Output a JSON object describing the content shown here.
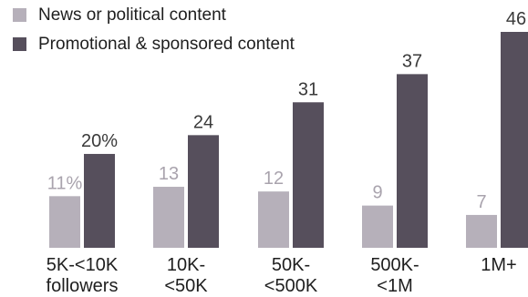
{
  "chart_data": {
    "type": "bar",
    "title": "",
    "xlabel": "",
    "ylabel": "",
    "ylim": [
      0,
      46
    ],
    "categories": [
      [
        "5K-<10K",
        "followers"
      ],
      [
        "10K-",
        "<50K"
      ],
      [
        "50K-",
        "<500K"
      ],
      [
        "500K-",
        "<1M"
      ],
      [
        "1M+"
      ]
    ],
    "series": [
      {
        "name": "News or political content",
        "color": "#b6b0ba",
        "label_color": "#a9a3ad",
        "values": [
          11,
          13,
          12,
          9,
          7
        ],
        "labels": [
          "11%",
          "13",
          "12",
          "9",
          "7"
        ]
      },
      {
        "name": "Promotional & sponsored content",
        "color": "#564f5c",
        "label_color": "#3a3a3a",
        "values": [
          20,
          24,
          31,
          37,
          46
        ],
        "labels": [
          "20%",
          "24",
          "31",
          "37",
          "46"
        ]
      }
    ],
    "legend_position": "top-left",
    "grid": false
  }
}
